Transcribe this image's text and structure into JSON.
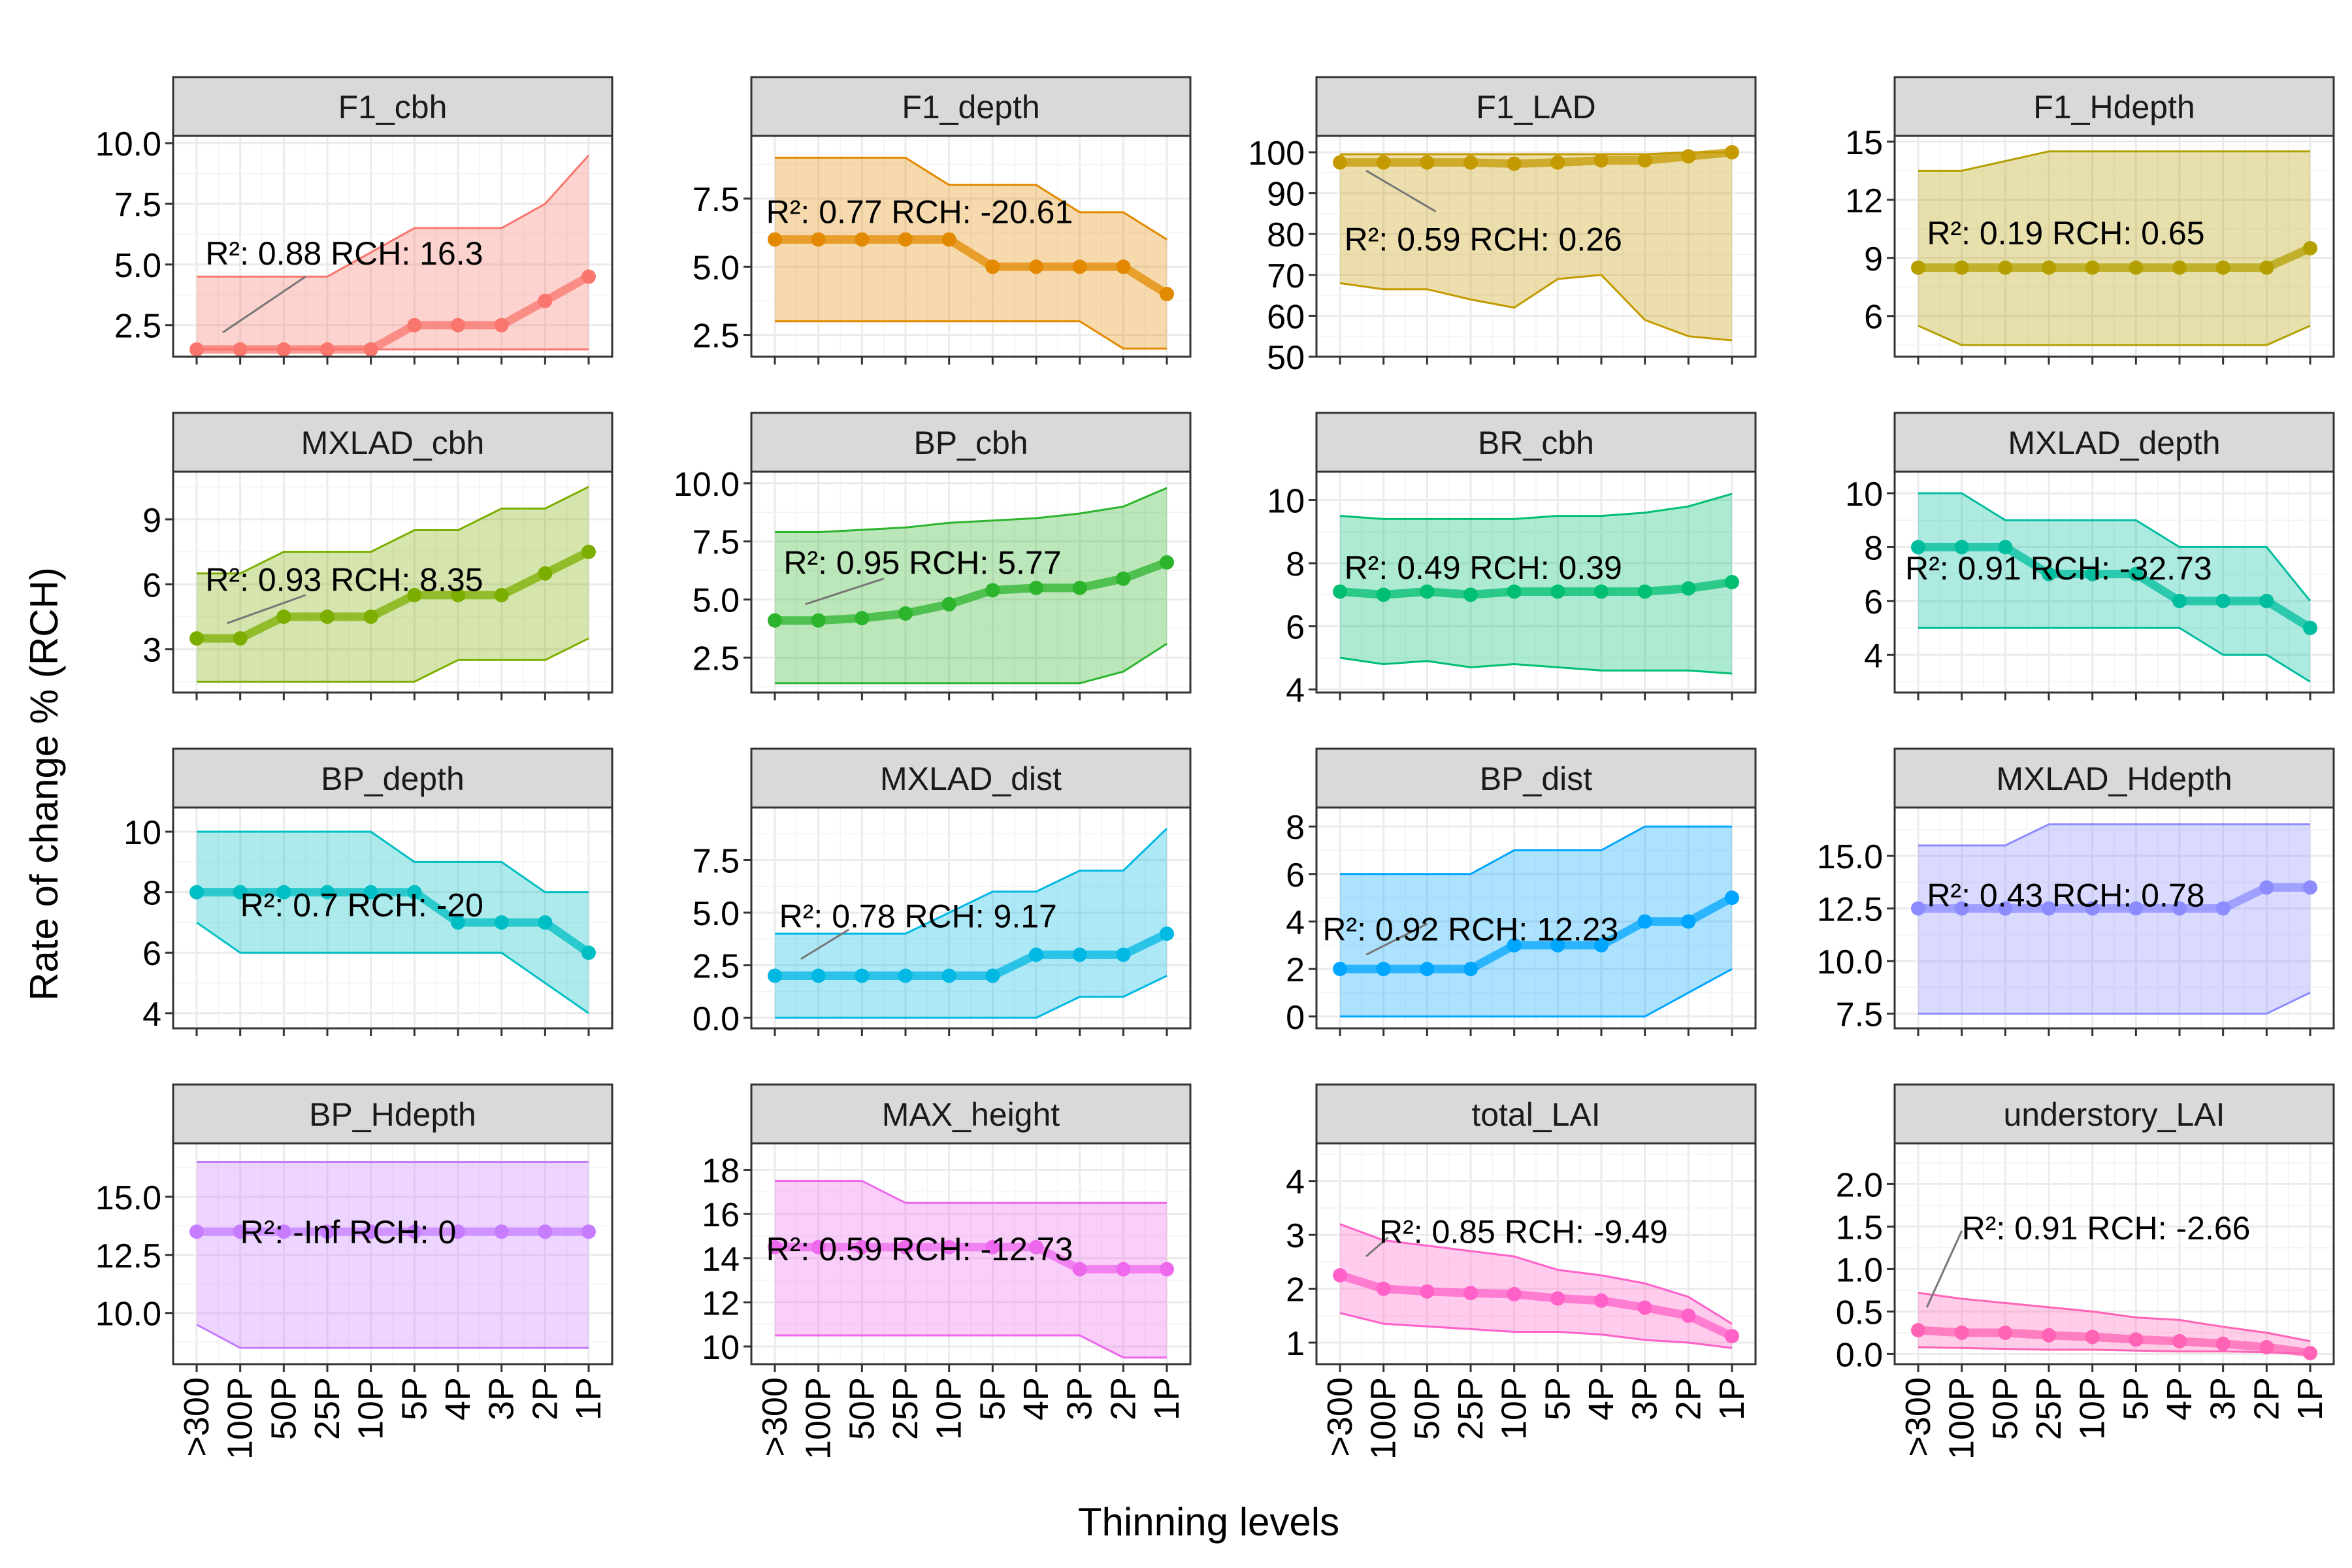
{
  "chart_data": {
    "type": "line",
    "xlabel": "Thinning levels",
    "ylabel": "Rate of change % (RCH)",
    "x": [
      ">300",
      "100P",
      "50P",
      "25P",
      "10P",
      "5P",
      "4P",
      "3P",
      "2P",
      "1P"
    ],
    "grid": true,
    "legend": "none",
    "facets": [
      {
        "name": "F1_cbh",
        "color": "#F8766D",
        "values": [
          1.5,
          1.5,
          1.5,
          1.5,
          1.5,
          2.5,
          2.5,
          2.5,
          3.5,
          4.5
        ],
        "upper": [
          4.5,
          4.5,
          4.5,
          4.5,
          5.5,
          6.5,
          6.5,
          6.5,
          7.5,
          9.5
        ],
        "lower": [
          1.5,
          1.5,
          1.5,
          1.5,
          1.5,
          1.5,
          1.5,
          1.5,
          1.5,
          1.5
        ],
        "ylim": [
          1.2,
          10.3
        ],
        "yticks": [
          2.5,
          5.0,
          7.5,
          10.0
        ],
        "ytick_labels": [
          "2.5",
          "5.0",
          "7.5",
          "10.0"
        ],
        "annotation": "R²: 0.88 RCH: 16.3",
        "ann_x": 0.2,
        "ann_y": 5.0,
        "ann_from": [
          0.6,
          2.2
        ],
        "ann_to": [
          2.5,
          4.5
        ]
      },
      {
        "name": "F1_depth",
        "color": "#E38900",
        "values": [
          6,
          6,
          6,
          6,
          6,
          5,
          5,
          5,
          5,
          4
        ],
        "upper": [
          9,
          9,
          9,
          9,
          8,
          8,
          8,
          7,
          7,
          6
        ],
        "lower": [
          3,
          3,
          3,
          3,
          3,
          3,
          3,
          3,
          2,
          2
        ],
        "ylim": [
          1.7,
          9.8
        ],
        "yticks": [
          2.5,
          5.0,
          7.5
        ],
        "ytick_labels": [
          "2.5",
          "5.0",
          "7.5"
        ],
        "annotation": "R²: 0.77 RCH: -20.61",
        "ann_x": -0.2,
        "ann_y": 6.6,
        "ann_from": null,
        "ann_to": null
      },
      {
        "name": "F1_LAD",
        "color": "#C49A00",
        "values": [
          97.5,
          97.5,
          97.5,
          97.5,
          97.2,
          97.5,
          98,
          98,
          99,
          100
        ],
        "upper": [
          99.5,
          99.5,
          99.5,
          99.5,
          99.5,
          99.5,
          99.5,
          99.5,
          100,
          100
        ],
        "lower": [
          68,
          66.5,
          66.5,
          64,
          62,
          69,
          70,
          59,
          55,
          54
        ],
        "ylim": [
          50,
          104
        ],
        "yticks": [
          50,
          60,
          70,
          80,
          90,
          100
        ],
        "ytick_labels": [
          "50",
          "60",
          "70",
          "80",
          "90",
          "100"
        ],
        "annotation": "R²: 0.59 RCH: 0.26",
        "ann_x": 0.1,
        "ann_y": 76,
        "ann_from": [
          2.2,
          85.5
        ],
        "ann_to": [
          0.6,
          95.5
        ]
      },
      {
        "name": "F1_Hdepth",
        "color": "#B3A000",
        "values": [
          8.5,
          8.5,
          8.5,
          8.5,
          8.5,
          8.5,
          8.5,
          8.5,
          8.5,
          9.5
        ],
        "upper": [
          13.5,
          13.5,
          14,
          14.5,
          14.5,
          14.5,
          14.5,
          14.5,
          14.5,
          14.5
        ],
        "lower": [
          5.5,
          4.5,
          4.5,
          4.5,
          4.5,
          4.5,
          4.5,
          4.5,
          4.5,
          5.5
        ],
        "ylim": [
          3.9,
          15.3
        ],
        "yticks": [
          6,
          9,
          12,
          15
        ],
        "ytick_labels": [
          "6",
          "9",
          "12",
          "15"
        ],
        "annotation": "R²: 0.19 RCH: 0.65",
        "ann_x": 0.2,
        "ann_y": 9.7,
        "ann_from": null,
        "ann_to": null
      },
      {
        "name": "MXLAD_cbh",
        "color": "#7CAE00",
        "values": [
          3.5,
          3.5,
          4.5,
          4.5,
          4.5,
          5.5,
          5.5,
          5.5,
          6.5,
          7.5
        ],
        "upper": [
          6.5,
          6.5,
          7.5,
          7.5,
          7.5,
          8.5,
          8.5,
          9.5,
          9.5,
          10.5
        ],
        "lower": [
          1.5,
          1.5,
          1.5,
          1.5,
          1.5,
          1.5,
          2.5,
          2.5,
          2.5,
          3.5
        ],
        "ylim": [
          1,
          11.2
        ],
        "yticks": [
          3,
          6,
          9
        ],
        "ytick_labels": [
          "3",
          "6",
          "9"
        ],
        "annotation": "R²: 0.93 RCH: 8.35",
        "ann_x": 0.2,
        "ann_y": 5.7,
        "ann_from": [
          0.7,
          4.2
        ],
        "ann_to": [
          2.5,
          5.5
        ]
      },
      {
        "name": "BP_cbh",
        "color": "#2CB42C",
        "values": [
          4.1,
          4.1,
          4.2,
          4.4,
          4.8,
          5.4,
          5.5,
          5.5,
          5.9,
          6.6
        ],
        "upper": [
          7.9,
          7.9,
          8,
          8.1,
          8.3,
          8.4,
          8.5,
          8.7,
          9,
          9.8
        ],
        "lower": [
          1.4,
          1.4,
          1.4,
          1.4,
          1.4,
          1.4,
          1.4,
          1.4,
          1.9,
          3.1
        ],
        "ylim": [
          1.0,
          10.5
        ],
        "yticks": [
          2.5,
          5.0,
          7.5,
          10.0
        ],
        "ytick_labels": [
          "2.5",
          "5.0",
          "7.5",
          "10.0"
        ],
        "annotation": "R²: 0.95 RCH: 5.77",
        "ann_x": 0.2,
        "ann_y": 6.1,
        "ann_from": [
          0.7,
          4.8
        ],
        "ann_to": [
          2.5,
          5.9
        ]
      },
      {
        "name": "BR_cbh",
        "color": "#00BE72",
        "values": [
          7.1,
          7.0,
          7.1,
          7.0,
          7.1,
          7.1,
          7.1,
          7.1,
          7.2,
          7.4
        ],
        "upper": [
          9.5,
          9.4,
          9.4,
          9.4,
          9.4,
          9.5,
          9.5,
          9.6,
          9.8,
          10.2
        ],
        "lower": [
          5.0,
          4.8,
          4.9,
          4.7,
          4.8,
          4.7,
          4.6,
          4.6,
          4.6,
          4.5
        ],
        "ylim": [
          3.9,
          10.9
        ],
        "yticks": [
          4,
          6,
          8,
          10
        ],
        "ytick_labels": [
          "4",
          "6",
          "8",
          "10"
        ],
        "annotation": "R²: 0.49 RCH: 0.39",
        "ann_x": 0.1,
        "ann_y": 7.5,
        "ann_from": null,
        "ann_to": null
      },
      {
        "name": "MXLAD_depth",
        "color": "#00BD9E",
        "values": [
          8,
          8,
          8,
          7,
          7,
          7,
          6,
          6,
          6,
          5
        ],
        "upper": [
          10,
          10,
          9,
          9,
          9,
          9,
          8,
          8,
          8,
          6
        ],
        "lower": [
          5,
          5,
          5,
          5,
          5,
          5,
          5,
          4,
          4,
          3
        ],
        "ylim": [
          2.6,
          10.8
        ],
        "yticks": [
          4,
          6,
          8,
          10
        ],
        "ytick_labels": [
          "4",
          "6",
          "8",
          "10"
        ],
        "annotation": "R²: 0.91 RCH: -32.73",
        "ann_x": -0.3,
        "ann_y": 6.8,
        "ann_from": null,
        "ann_to": null
      },
      {
        "name": "BP_depth",
        "color": "#00BFC4",
        "values": [
          8,
          8,
          8,
          8,
          8,
          8,
          7,
          7,
          7,
          6
        ],
        "upper": [
          10,
          10,
          10,
          10,
          10,
          9,
          9,
          9,
          8,
          8
        ],
        "lower": [
          7,
          6,
          6,
          6,
          6,
          6,
          6,
          6,
          5,
          4
        ],
        "ylim": [
          3.5,
          10.8
        ],
        "yticks": [
          4,
          6,
          8,
          10
        ],
        "ytick_labels": [
          "4",
          "6",
          "8",
          "10"
        ],
        "annotation": "R²: 0.7 RCH: -20",
        "ann_x": 1.0,
        "ann_y": 7.2,
        "ann_from": null,
        "ann_to": null
      },
      {
        "name": "MXLAD_dist",
        "color": "#00B8E3",
        "values": [
          2,
          2,
          2,
          2,
          2,
          2,
          3,
          3,
          3,
          4
        ],
        "upper": [
          4,
          4,
          4,
          4,
          5,
          6,
          6,
          7,
          7,
          9
        ],
        "lower": [
          0,
          0,
          0,
          0,
          0,
          0,
          0,
          1,
          1,
          2
        ],
        "ylim": [
          -0.5,
          10.0
        ],
        "yticks": [
          0.0,
          2.5,
          5.0,
          7.5
        ],
        "ytick_labels": [
          "0.0",
          "2.5",
          "5.0",
          "7.5"
        ],
        "annotation": "R²: 0.78 RCH: 9.17",
        "ann_x": 0.1,
        "ann_y": 4.3,
        "ann_from": [
          0.6,
          2.8
        ],
        "ann_to": [
          1.7,
          4.2
        ]
      },
      {
        "name": "BP_dist",
        "color": "#00A5FF",
        "values": [
          2,
          2,
          2,
          2,
          3,
          3,
          3,
          4,
          4,
          5
        ],
        "upper": [
          6,
          6,
          6,
          6,
          7,
          7,
          7,
          8,
          8,
          8
        ],
        "lower": [
          0,
          0,
          0,
          0,
          0,
          0,
          0,
          0,
          1,
          2
        ],
        "ylim": [
          -0.5,
          8.8
        ],
        "yticks": [
          0,
          2,
          4,
          6,
          8
        ],
        "ytick_labels": [
          "0",
          "2",
          "4",
          "6",
          "8"
        ],
        "annotation": "R²: 0.92 RCH: 12.23",
        "ann_x": -0.4,
        "ann_y": 3.2,
        "ann_from": [
          0.6,
          2.6
        ],
        "ann_to": [
          2.0,
          3.9
        ]
      },
      {
        "name": "MXLAD_Hdepth",
        "color": "#8C8CFF",
        "values": [
          12.5,
          12.5,
          12.5,
          12.5,
          12.5,
          12.5,
          12.5,
          12.5,
          13.5,
          13.5
        ],
        "upper": [
          15.5,
          15.5,
          15.5,
          16.5,
          16.5,
          16.5,
          16.5,
          16.5,
          16.5,
          16.5
        ],
        "lower": [
          7.5,
          7.5,
          7.5,
          7.5,
          7.5,
          7.5,
          7.5,
          7.5,
          7.5,
          8.5
        ],
        "ylim": [
          6.8,
          17.3
        ],
        "yticks": [
          7.5,
          10.0,
          12.5,
          15.0
        ],
        "ytick_labels": [
          "7.5",
          "10.0",
          "12.5",
          "15.0"
        ],
        "annotation": "R²: 0.43 RCH: 0.78",
        "ann_x": 0.2,
        "ann_y": 12.6,
        "ann_from": null,
        "ann_to": null
      },
      {
        "name": "BP_Hdepth",
        "color": "#C77CFF",
        "values": [
          13.5,
          13.5,
          13.5,
          13.5,
          13.5,
          13.5,
          13.5,
          13.5,
          13.5,
          13.5
        ],
        "upper": [
          16.5,
          16.5,
          16.5,
          16.5,
          16.5,
          16.5,
          16.5,
          16.5,
          16.5,
          16.5
        ],
        "lower": [
          9.5,
          8.5,
          8.5,
          8.5,
          8.5,
          8.5,
          8.5,
          8.5,
          8.5,
          8.5
        ],
        "ylim": [
          7.8,
          17.3
        ],
        "yticks": [
          10.0,
          12.5,
          15.0
        ],
        "ytick_labels": [
          "10.0",
          "12.5",
          "15.0"
        ],
        "annotation": "R²: -Inf RCH: 0",
        "ann_x": 1.0,
        "ann_y": 13.0,
        "ann_from": null,
        "ann_to": null
      },
      {
        "name": "MAX_height",
        "color": "#ED68ED",
        "values": [
          14.5,
          14.5,
          14.5,
          14.5,
          14.5,
          14.5,
          14.5,
          13.5,
          13.5,
          13.5
        ],
        "upper": [
          17.5,
          17.5,
          17.5,
          16.5,
          16.5,
          16.5,
          16.5,
          16.5,
          16.5,
          16.5
        ],
        "lower": [
          10.5,
          10.5,
          10.5,
          10.5,
          10.5,
          10.5,
          10.5,
          10.5,
          9.5,
          9.5
        ],
        "ylim": [
          9.2,
          19.2
        ],
        "yticks": [
          10,
          12,
          14,
          16,
          18
        ],
        "ytick_labels": [
          "10",
          "12",
          "14",
          "16",
          "18"
        ],
        "annotation": "R²: 0.59 RCH: -12.73",
        "ann_x": -0.2,
        "ann_y": 13.9,
        "ann_from": null,
        "ann_to": null
      },
      {
        "name": "total_LAI",
        "color": "#FF61C9",
        "values": [
          2.25,
          2.0,
          1.95,
          1.92,
          1.9,
          1.82,
          1.78,
          1.65,
          1.5,
          1.12
        ],
        "upper": [
          3.2,
          2.9,
          2.8,
          2.7,
          2.6,
          2.35,
          2.25,
          2.1,
          1.85,
          1.35
        ],
        "lower": [
          1.55,
          1.35,
          1.3,
          1.25,
          1.2,
          1.2,
          1.15,
          1.05,
          1.0,
          0.9
        ],
        "ylim": [
          0.6,
          4.7
        ],
        "yticks": [
          1,
          2,
          3,
          4
        ],
        "ytick_labels": [
          "1",
          "2",
          "3",
          "4"
        ],
        "annotation": "R²: 0.85 RCH: -9.49",
        "ann_x": 0.9,
        "ann_y": 2.85,
        "ann_from": [
          0.6,
          2.6
        ],
        "ann_to": [
          1.1,
          2.95
        ]
      },
      {
        "name": "understory_LAI",
        "color": "#FF63B6",
        "values": [
          0.28,
          0.25,
          0.25,
          0.22,
          0.2,
          0.17,
          0.15,
          0.12,
          0.08,
          0.01
        ],
        "upper": [
          0.72,
          0.65,
          0.6,
          0.55,
          0.5,
          0.43,
          0.4,
          0.32,
          0.25,
          0.15
        ],
        "lower": [
          0.08,
          0.07,
          0.06,
          0.05,
          0.05,
          0.04,
          0.03,
          0.03,
          0.02,
          0.0
        ],
        "ylim": [
          -0.12,
          2.48
        ],
        "yticks": [
          0.0,
          0.5,
          1.0,
          1.5,
          2.0
        ],
        "ytick_labels": [
          "0.0",
          "0.5",
          "1.0",
          "1.5",
          "2.0"
        ],
        "annotation": "R²: 0.91 RCH: -2.66",
        "ann_x": 1.0,
        "ann_y": 1.35,
        "ann_from": [
          0.2,
          0.55
        ],
        "ann_to": [
          1.0,
          1.45
        ]
      }
    ]
  }
}
